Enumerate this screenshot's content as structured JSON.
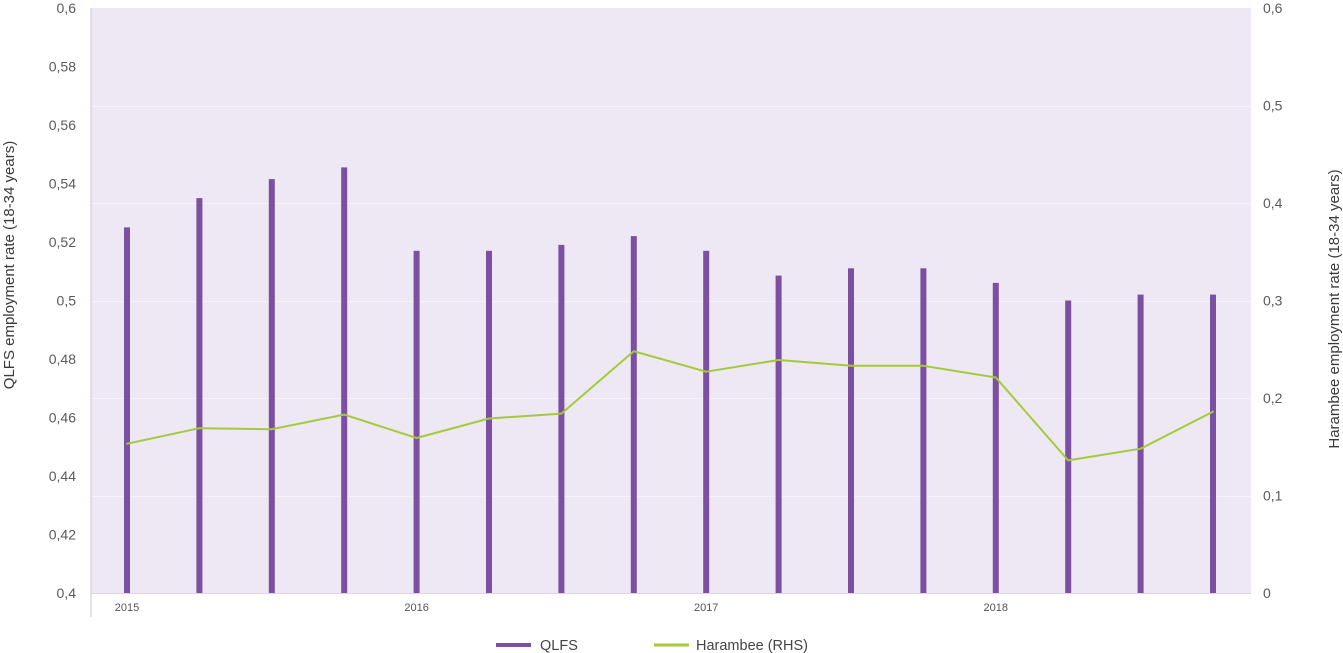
{
  "chart_data": {
    "type": "bar",
    "categories": [
      "2015",
      "",
      "",
      "",
      "2016",
      "",
      "",
      "",
      "2017",
      "",
      "",
      "",
      "2018",
      "",
      "",
      ""
    ],
    "series": [
      {
        "name": "QLFS",
        "type": "bar",
        "axis": "left",
        "color": "#7B4FA2",
        "values": [
          0.525,
          0.535,
          0.5415,
          0.5455,
          0.517,
          0.517,
          0.519,
          0.522,
          0.517,
          0.5085,
          0.511,
          0.511,
          0.506,
          0.5,
          0.502,
          0.502
        ]
      },
      {
        "name": "Harambee (RHS)",
        "type": "line",
        "axis": "right",
        "color": "#A5C93B",
        "values": [
          0.153,
          0.169,
          0.168,
          0.183,
          0.159,
          0.179,
          0.184,
          0.248,
          0.227,
          0.239,
          0.233,
          0.233,
          0.221,
          0.136,
          0.148,
          0.186
        ]
      }
    ],
    "xlabel": "",
    "ylabel": "QLFS employment rate (18-34 years)",
    "y2label": "Harambee employment rate (18-34 years)",
    "ylim": [
      0.4,
      0.6
    ],
    "y2lim": [
      0,
      0.6
    ],
    "y_ticks": [
      0.4,
      0.42,
      0.44,
      0.46,
      0.48,
      0.5,
      0.52,
      0.54,
      0.56,
      0.58,
      0.6
    ],
    "y_tick_labels": [
      "0,4",
      "0,42",
      "0,44",
      "0,46",
      "0,48",
      "0,5",
      "0,52",
      "0,54",
      "0,56",
      "0,58",
      "0,6"
    ],
    "y2_ticks": [
      0,
      0.1,
      0.2,
      0.3,
      0.4,
      0.5,
      0.6
    ],
    "y2_tick_labels": [
      "0",
      "0,1",
      "0,2",
      "0,3",
      "0,4",
      "0,5",
      "0,6"
    ],
    "grid": true,
    "legend": {
      "placement": "bottom"
    },
    "plot_background": "#EEE8F4"
  }
}
